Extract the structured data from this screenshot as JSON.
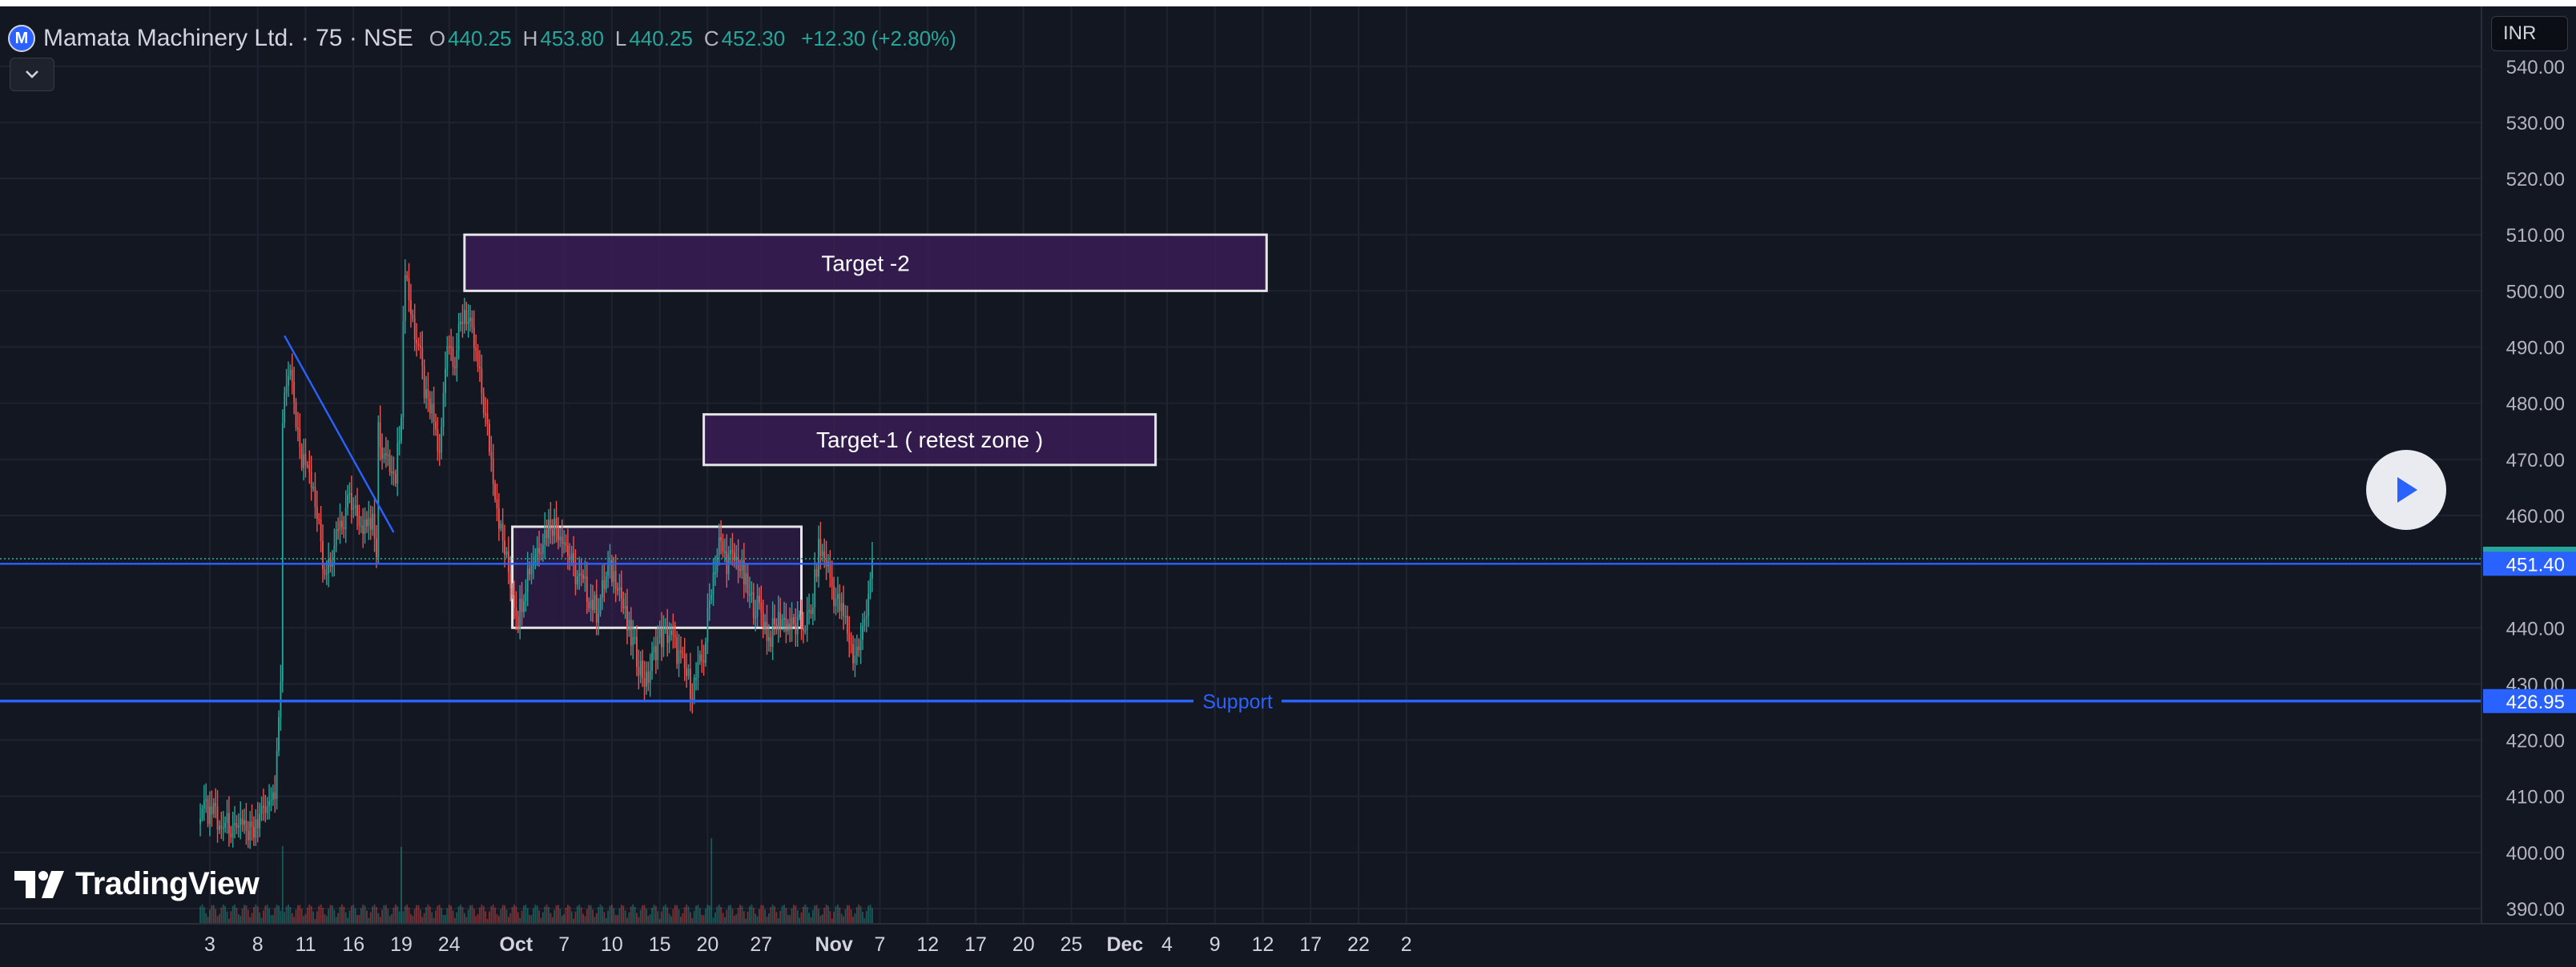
{
  "header": {
    "logo_letter": "M",
    "symbol": "Mamata Machinery Ltd. · 75 · NSE",
    "open_label": "O",
    "open_value": "440.25",
    "high_label": "H",
    "high_value": "453.80",
    "low_label": "L",
    "low_value": "440.25",
    "close_label": "C",
    "close_value": "452.30",
    "change": "+12.30 (+2.80%)"
  },
  "currency": "INR",
  "watermark": "TradingView",
  "colors": {
    "background": "#131722",
    "grid": "#1f2330",
    "up": "#26a69a",
    "down": "#ef5350",
    "zone_fill": "#3a1d55",
    "zone_border": "#e6e6e6",
    "support": "#2962ff",
    "price_badge": "#26a69a",
    "prev_badge": "#2962ff"
  },
  "icons": {
    "collapse": "chevron-down-icon",
    "play": "play-icon",
    "logo": "tradingview-logo-icon"
  },
  "chart_data": {
    "type": "candlestick",
    "title": "Mamata Machinery Ltd. · 75 · NSE",
    "y_ticks": [
      "390.00",
      "400.00",
      "410.00",
      "420.00",
      "430.00",
      "440.00",
      "460.00",
      "470.00",
      "480.00",
      "490.00",
      "500.00",
      "510.00",
      "520.00",
      "530.00",
      "540.00"
    ],
    "ylim": [
      386,
      543
    ],
    "x_ticks": [
      {
        "label": "3",
        "i": -100
      },
      {
        "label": "8",
        "i": -75
      },
      {
        "label": "11",
        "i": -50
      },
      {
        "label": "16",
        "i": -25
      },
      {
        "label": "19",
        "i": 0
      },
      {
        "label": "24",
        "i": 25
      },
      {
        "label": "Oct",
        "i": 60,
        "bold": true
      },
      {
        "label": "7",
        "i": 85
      },
      {
        "label": "10",
        "i": 110
      },
      {
        "label": "15",
        "i": 135
      },
      {
        "label": "20",
        "i": 160
      },
      {
        "label": "27",
        "i": 188
      },
      {
        "label": "Nov",
        "i": 226,
        "bold": true
      },
      {
        "label": "7",
        "i": 250
      },
      {
        "label": "12",
        "i": 275
      },
      {
        "label": "17",
        "i": 300
      },
      {
        "label": "20",
        "i": 325
      },
      {
        "label": "25",
        "i": 350
      },
      {
        "label": "Dec",
        "i": 378,
        "bold": true
      },
      {
        "label": "4",
        "i": 400
      },
      {
        "label": "9",
        "i": 425
      },
      {
        "label": "12",
        "i": 450
      },
      {
        "label": "17",
        "i": 475
      },
      {
        "label": "22",
        "i": 500
      },
      {
        "label": "2",
        "i": 525
      }
    ],
    "last_price": "452.30",
    "prev_price": "451.40",
    "support_price": "426.95",
    "support_label": "Support",
    "zones": [
      {
        "label": "Target -2",
        "i0": 33,
        "i1": 452,
        "p_top": 510,
        "p_bot": 500
      },
      {
        "label": "Target-1 ( retest zone )",
        "i0": 158,
        "i1": 394,
        "p_top": 478,
        "p_bot": 469
      },
      {
        "label": "",
        "i0": 58,
        "i1": 209,
        "p_top": 458,
        "p_bot": 440
      }
    ],
    "trendline": {
      "i0": -61,
      "p0": 492,
      "i1": -4,
      "p1": 457
    },
    "key_points": [
      {
        "i": -105,
        "p": 408
      },
      {
        "i": -90,
        "p": 405
      },
      {
        "i": -78,
        "p": 403
      },
      {
        "i": -66,
        "p": 410
      },
      {
        "i": -63,
        "p": 428
      },
      {
        "i": -62,
        "p": 478
      },
      {
        "i": -58,
        "p": 485
      },
      {
        "i": -52,
        "p": 470
      },
      {
        "i": -45,
        "p": 463
      },
      {
        "i": -40,
        "p": 450
      },
      {
        "i": -35,
        "p": 455
      },
      {
        "i": -28,
        "p": 462
      },
      {
        "i": -20,
        "p": 458
      },
      {
        "i": -15,
        "p": 460
      },
      {
        "i": -13,
        "p": 455
      },
      {
        "i": -12,
        "p": 475
      },
      {
        "i": -8,
        "p": 470
      },
      {
        "i": -3,
        "p": 466
      },
      {
        "i": 0,
        "p": 480
      },
      {
        "i": 2,
        "p": 505
      },
      {
        "i": 5,
        "p": 496
      },
      {
        "i": 9,
        "p": 490
      },
      {
        "i": 13,
        "p": 480
      },
      {
        "i": 17,
        "p": 477
      },
      {
        "i": 20,
        "p": 470
      },
      {
        "i": 24,
        "p": 492
      },
      {
        "i": 28,
        "p": 488
      },
      {
        "i": 33,
        "p": 497
      },
      {
        "i": 38,
        "p": 490
      },
      {
        "i": 42,
        "p": 482
      },
      {
        "i": 47,
        "p": 470
      },
      {
        "i": 52,
        "p": 457
      },
      {
        "i": 56,
        "p": 450
      },
      {
        "i": 61,
        "p": 442
      },
      {
        "i": 66,
        "p": 450
      },
      {
        "i": 72,
        "p": 455
      },
      {
        "i": 78,
        "p": 459
      },
      {
        "i": 84,
        "p": 457
      },
      {
        "i": 90,
        "p": 450
      },
      {
        "i": 96,
        "p": 447
      },
      {
        "i": 102,
        "p": 443
      },
      {
        "i": 108,
        "p": 450
      },
      {
        "i": 113,
        "p": 449
      },
      {
        "i": 118,
        "p": 440
      },
      {
        "i": 124,
        "p": 434
      },
      {
        "i": 128,
        "p": 430
      },
      {
        "i": 134,
        "p": 438
      },
      {
        "i": 140,
        "p": 439
      },
      {
        "i": 146,
        "p": 434
      },
      {
        "i": 152,
        "p": 429
      },
      {
        "i": 158,
        "p": 435
      },
      {
        "i": 162,
        "p": 448
      },
      {
        "i": 166,
        "p": 455
      },
      {
        "i": 170,
        "p": 452
      },
      {
        "i": 176,
        "p": 452
      },
      {
        "i": 182,
        "p": 445
      },
      {
        "i": 188,
        "p": 443
      },
      {
        "i": 192,
        "p": 438
      },
      {
        "i": 198,
        "p": 442
      },
      {
        "i": 204,
        "p": 440
      },
      {
        "i": 208,
        "p": 440
      },
      {
        "i": 214,
        "p": 442
      },
      {
        "i": 218,
        "p": 454
      },
      {
        "i": 222,
        "p": 452
      },
      {
        "i": 226,
        "p": 446
      },
      {
        "i": 232,
        "p": 441
      },
      {
        "i": 236,
        "p": 435
      },
      {
        "i": 240,
        "p": 437
      },
      {
        "i": 243,
        "p": 444
      },
      {
        "i": 246,
        "p": 452.3
      }
    ]
  }
}
